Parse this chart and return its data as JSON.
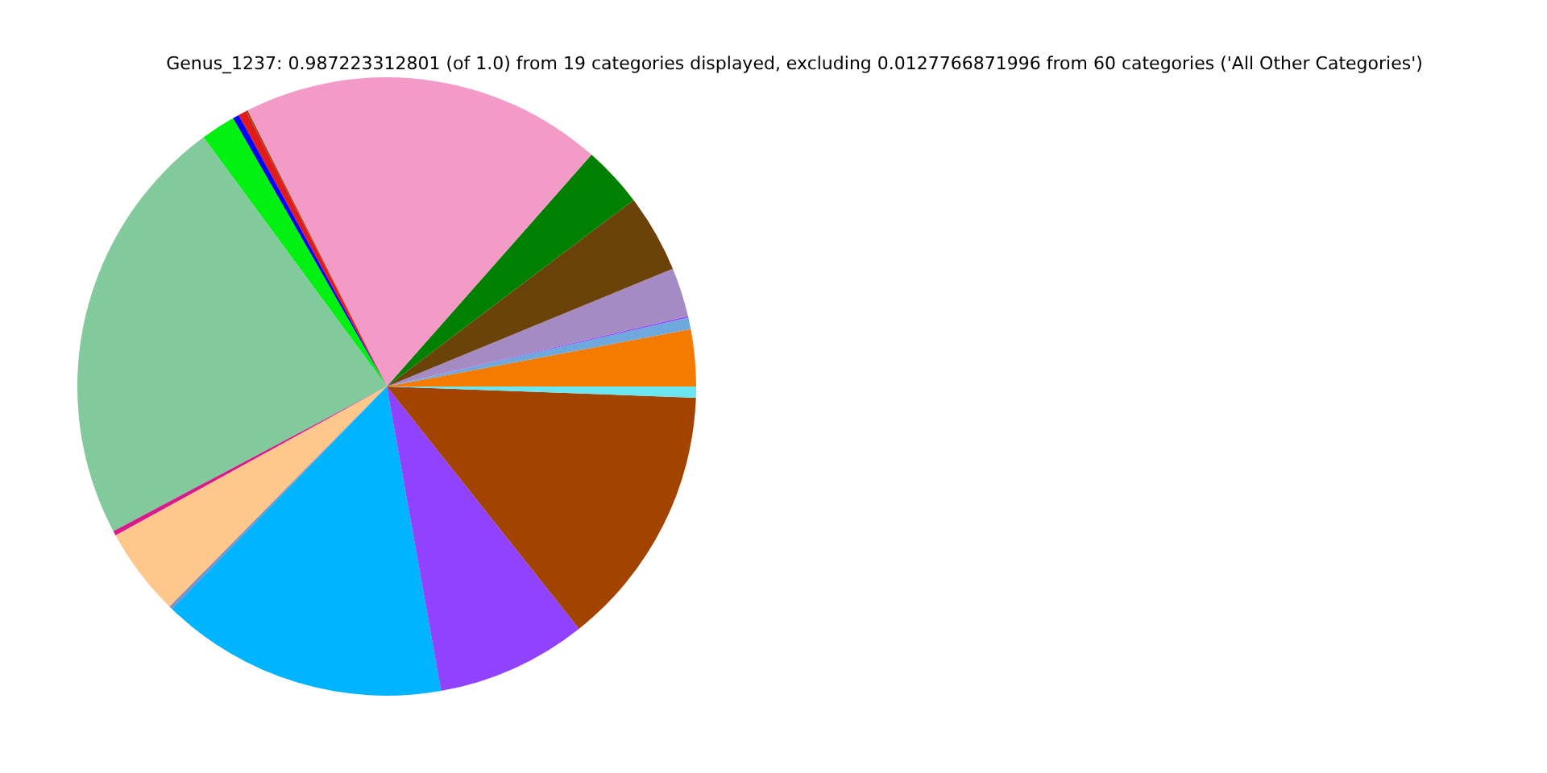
{
  "chart_data": {
    "type": "pie",
    "title": "Genus_1237: 0.987223312801 (of 1.0) from 19 categories displayed, excluding 0.0127766871996 from 60 categories ('All Other Categories')",
    "categories": [
      null,
      null,
      null,
      null,
      null,
      null,
      null,
      null,
      null,
      null,
      null,
      null,
      null,
      null,
      null,
      null,
      null,
      null,
      null
    ],
    "values": [
      2.97,
      0.61,
      0.08,
      2.56,
      4.08,
      3.19,
      18.94,
      0.08,
      0.44,
      0.33,
      1.81,
      22.66,
      0.25,
      4.61,
      0.17,
      15.03,
      7.86,
      13.75,
      0.58
    ],
    "colors": [
      "#f47a00",
      "#6fa8dc",
      "#8e44ff",
      "#a58bc4",
      "#6b420a",
      "#008000",
      "#f49ac6",
      "#8b4513",
      "#e31a1c",
      "#0000ff",
      "#00f010",
      "#82c99c",
      "#d81b8c",
      "#fec78c",
      "#8090c0",
      "#00b4ff",
      "#9042ff",
      "#a24400",
      "#6be6f0"
    ]
  }
}
